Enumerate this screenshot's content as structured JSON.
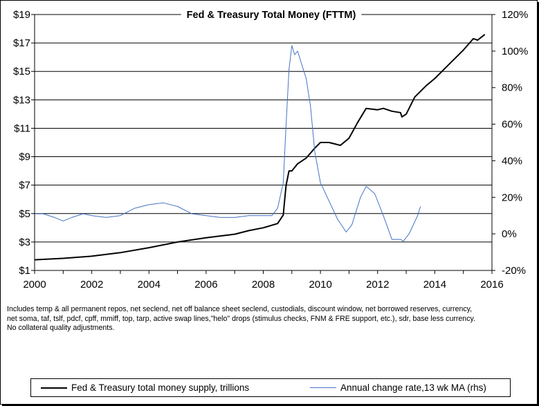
{
  "chart_data": {
    "type": "line",
    "title": "Fed & Treasury Total Money (FTTM)",
    "xlabel": "",
    "ylabel": "",
    "xlim": [
      2000,
      2016
    ],
    "ylim": [
      1,
      19
    ],
    "y2lim": [
      -20,
      120
    ],
    "x_ticks": [
      "2000",
      "2002",
      "2004",
      "2006",
      "2008",
      "2010",
      "2012",
      "2014",
      "2016"
    ],
    "y_ticks": [
      "$19",
      "$17",
      "$15",
      "$13",
      "$11",
      "$9",
      "$7",
      "$5",
      "$3",
      "$1"
    ],
    "y2_ticks": [
      "120%",
      "100%",
      "80%",
      "60%",
      "40%",
      "20%",
      "0%",
      "-20%"
    ],
    "grid": "horizontal",
    "series": [
      {
        "name": "Fed & Treasury total money supply, trillions",
        "color": "#000000",
        "axis": "left",
        "points": [
          [
            2000.0,
            1.75
          ],
          [
            2001.0,
            1.85
          ],
          [
            2002.0,
            2.0
          ],
          [
            2003.0,
            2.25
          ],
          [
            2004.0,
            2.6
          ],
          [
            2005.0,
            3.0
          ],
          [
            2006.0,
            3.3
          ],
          [
            2007.0,
            3.55
          ],
          [
            2007.5,
            3.8
          ],
          [
            2008.0,
            4.0
          ],
          [
            2008.5,
            4.3
          ],
          [
            2008.7,
            4.9
          ],
          [
            2008.75,
            6.0
          ],
          [
            2008.8,
            7.0
          ],
          [
            2008.9,
            8.0
          ],
          [
            2009.0,
            8.0
          ],
          [
            2009.2,
            8.5
          ],
          [
            2009.5,
            8.9
          ],
          [
            2009.8,
            9.6
          ],
          [
            2010.0,
            10.0
          ],
          [
            2010.3,
            10.0
          ],
          [
            2010.7,
            9.8
          ],
          [
            2011.0,
            10.3
          ],
          [
            2011.3,
            11.4
          ],
          [
            2011.6,
            12.4
          ],
          [
            2012.0,
            12.3
          ],
          [
            2012.2,
            12.4
          ],
          [
            2012.5,
            12.2
          ],
          [
            2012.8,
            12.1
          ],
          [
            2012.85,
            11.8
          ],
          [
            2013.0,
            12.0
          ],
          [
            2013.3,
            13.2
          ],
          [
            2013.7,
            14.0
          ],
          [
            2014.0,
            14.5
          ],
          [
            2014.5,
            15.5
          ],
          [
            2015.0,
            16.5
          ],
          [
            2015.35,
            17.3
          ],
          [
            2015.5,
            17.2
          ],
          [
            2015.75,
            17.6
          ]
        ]
      },
      {
        "name": "Annual change rate,13 wk MA (rhs)",
        "color": "#4472c4",
        "axis": "right",
        "points": [
          [
            2000.0,
            11
          ],
          [
            2000.3,
            11
          ],
          [
            2000.7,
            9
          ],
          [
            2001.0,
            7
          ],
          [
            2001.3,
            9
          ],
          [
            2001.7,
            11
          ],
          [
            2002.0,
            10
          ],
          [
            2002.5,
            9
          ],
          [
            2003.0,
            10
          ],
          [
            2003.5,
            14
          ],
          [
            2004.0,
            16
          ],
          [
            2004.5,
            17
          ],
          [
            2005.0,
            15
          ],
          [
            2005.5,
            11
          ],
          [
            2006.0,
            10
          ],
          [
            2006.5,
            9
          ],
          [
            2007.0,
            9
          ],
          [
            2007.5,
            10
          ],
          [
            2008.0,
            10
          ],
          [
            2008.3,
            10
          ],
          [
            2008.5,
            14
          ],
          [
            2008.7,
            28
          ],
          [
            2008.8,
            60
          ],
          [
            2008.9,
            90
          ],
          [
            2009.0,
            103
          ],
          [
            2009.1,
            98
          ],
          [
            2009.2,
            100
          ],
          [
            2009.3,
            95
          ],
          [
            2009.5,
            85
          ],
          [
            2009.65,
            70
          ],
          [
            2009.8,
            45
          ],
          [
            2010.0,
            28
          ],
          [
            2010.3,
            18
          ],
          [
            2010.6,
            8
          ],
          [
            2010.9,
            1
          ],
          [
            2011.1,
            5
          ],
          [
            2011.4,
            20
          ],
          [
            2011.6,
            26
          ],
          [
            2011.9,
            22
          ],
          [
            2012.2,
            10
          ],
          [
            2012.5,
            -3
          ],
          [
            2012.8,
            -3
          ],
          [
            2012.9,
            -4
          ],
          [
            2013.1,
            0
          ],
          [
            2013.4,
            10
          ],
          [
            2013.5,
            15
          ]
        ]
      }
    ],
    "legend_position": "bottom"
  },
  "notes": [
    "Includes temp & all permanent repos, net seclend, net off balance sheet seclend, custodials, discount window, net borrowed reserves, currency,",
    "net soma, taf, tslf, pdcf, cpff, mmiff, top, tarp, active swap lines,\"helo\" drops (stimulus checks, FNM & FRE support, etc.), sdr, base less currency.",
    "No collateral quality adjustments."
  ]
}
